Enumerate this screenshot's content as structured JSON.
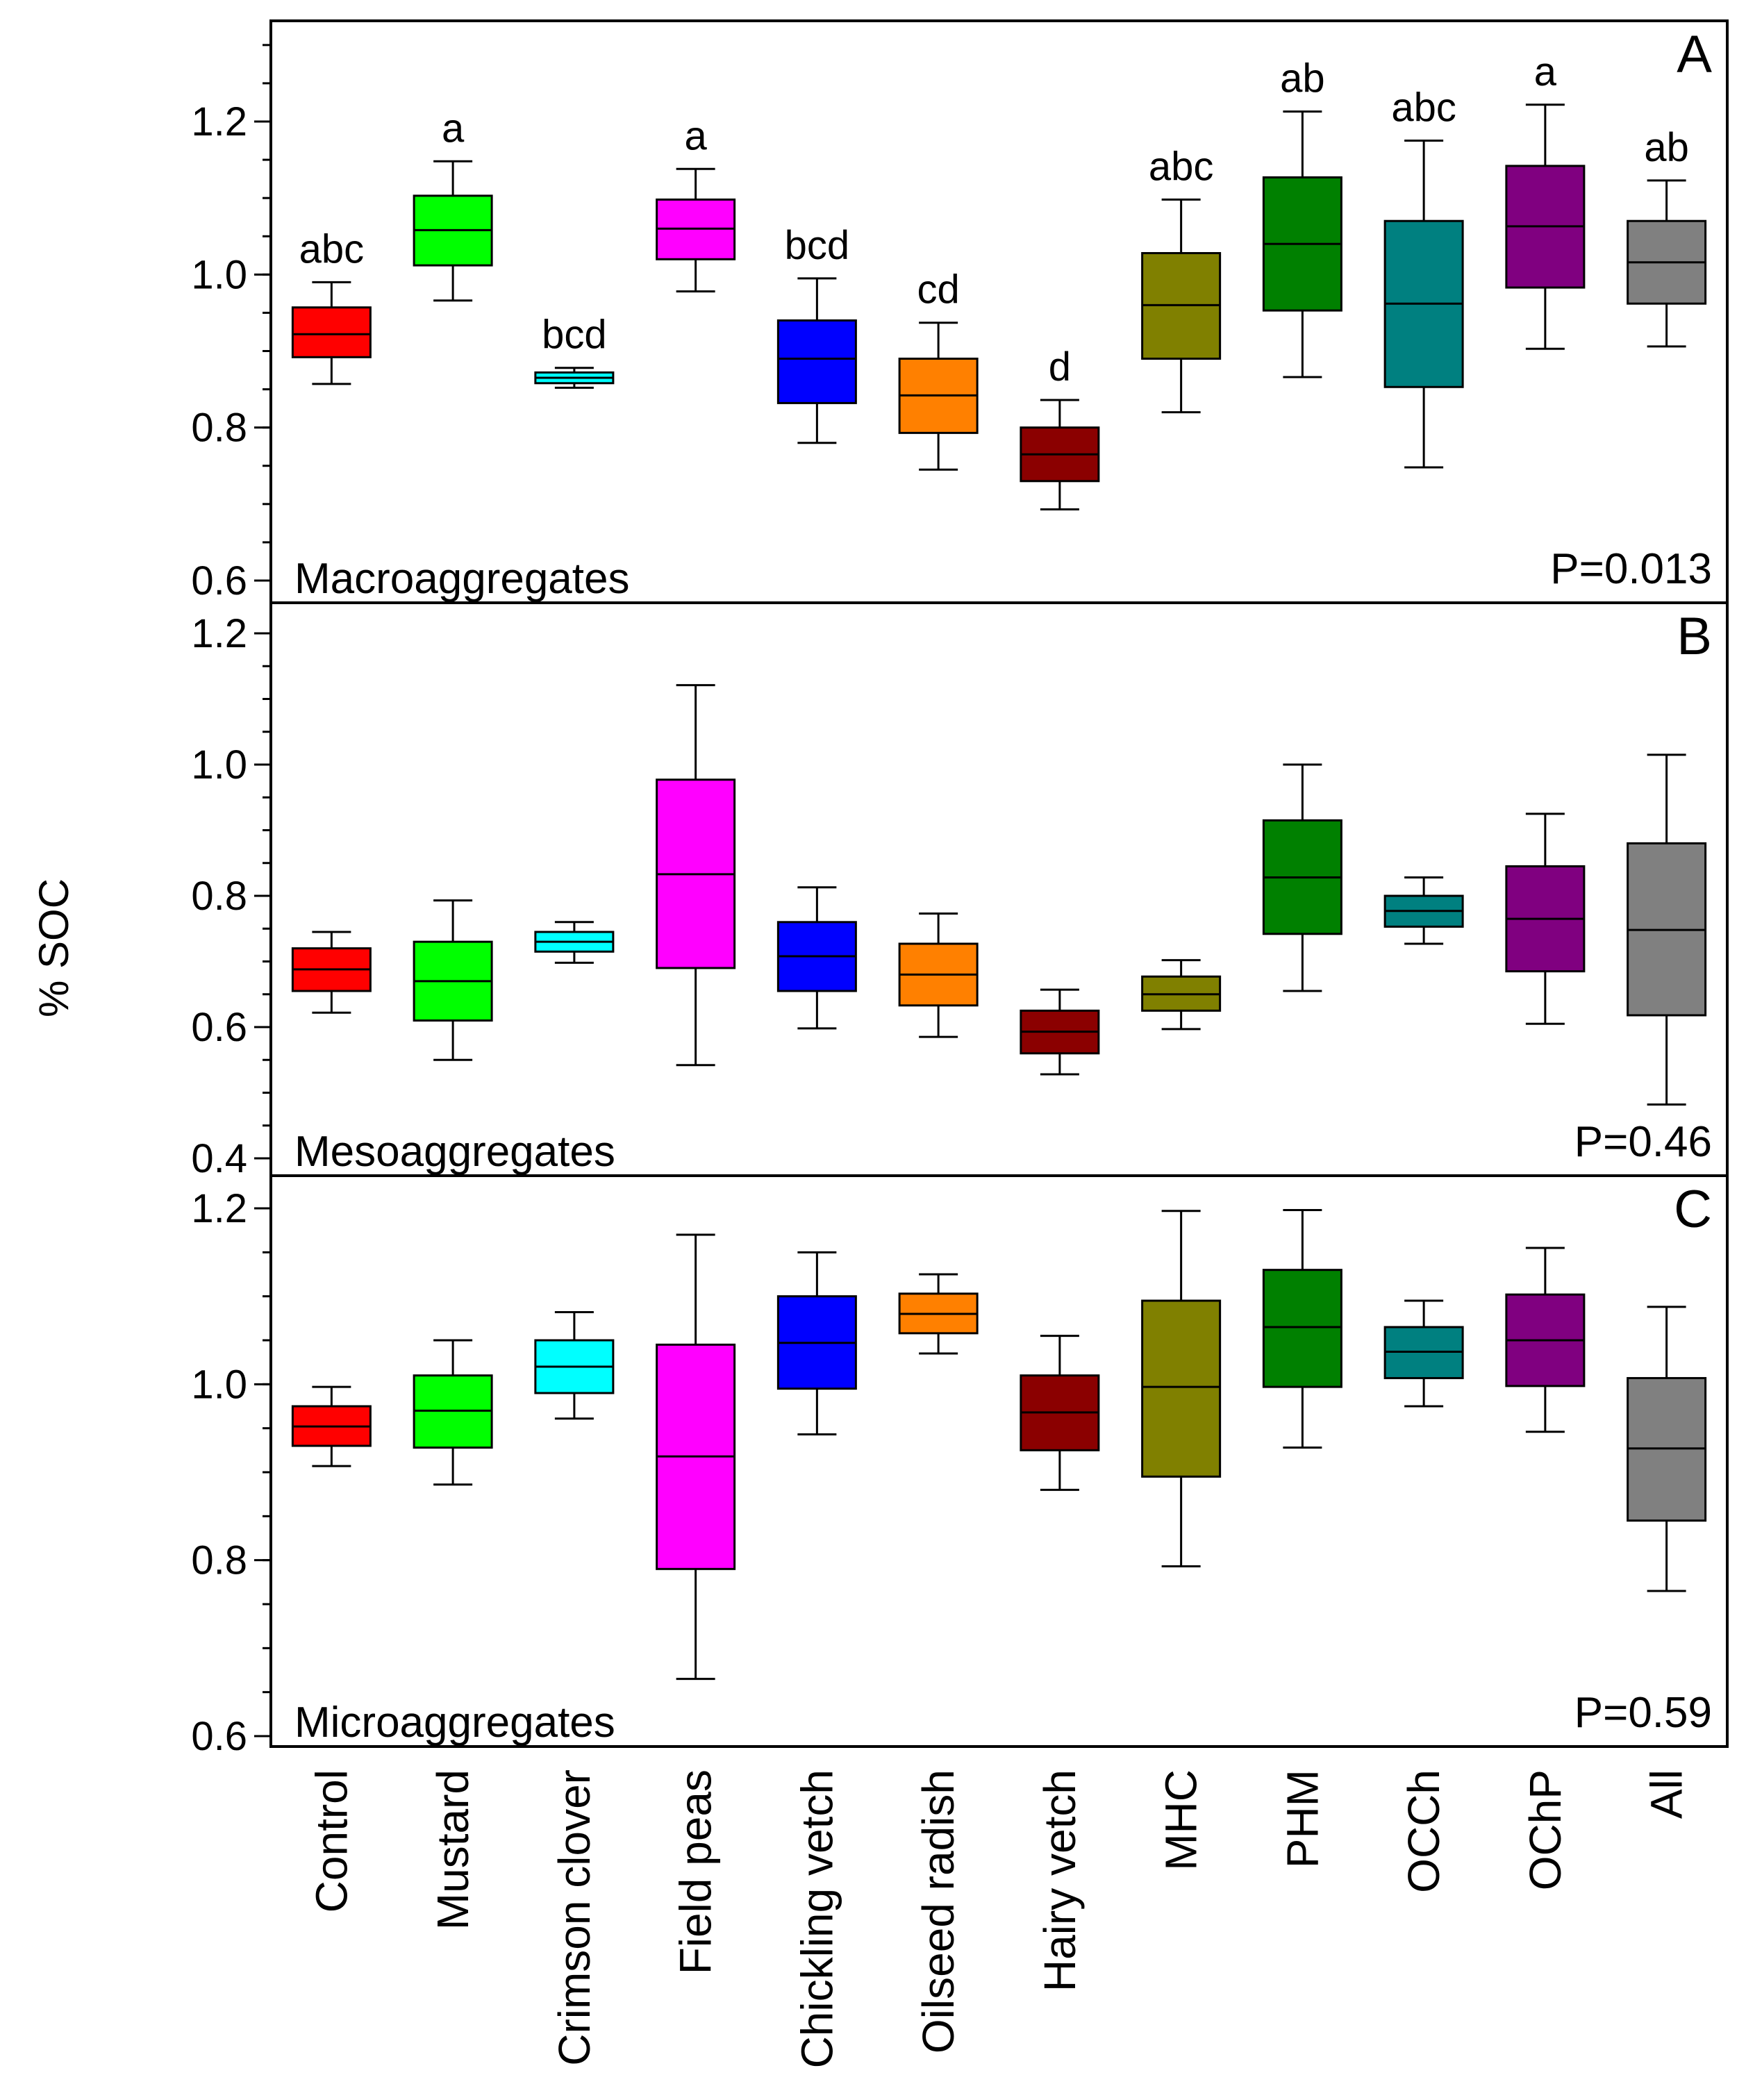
{
  "chart_data": {
    "type": "box",
    "ylabel": "% SOC",
    "categories": [
      "Control",
      "Mustard",
      "Crimson clover",
      "Field peas",
      "Chickling vetch",
      "Oilseed radish",
      "Hairy vetch",
      "MHC",
      "PHM",
      "OCCh",
      "OChP",
      "All"
    ],
    "colors": [
      "#ff0000",
      "#00ff00",
      "#00ffff",
      "#ff00ff",
      "#0000ff",
      "#ff8000",
      "#8b0000",
      "#808000",
      "#008000",
      "#008080",
      "#800080",
      "#808080"
    ],
    "panels": [
      {
        "letter": "A",
        "label": "Macroaggregates",
        "p_value": "P=0.013",
        "ylim": [
          0.6,
          1.33
        ],
        "yticks": [
          0.6,
          0.8,
          1.0,
          1.2
        ],
        "yticklabels": [
          "0.6",
          "0.8",
          "1.0",
          "1.2"
        ],
        "minor_step": 0.05,
        "letters": [
          "abc",
          "a",
          "bcd",
          "a",
          "bcd",
          "cd",
          "d",
          "abc",
          "ab",
          "abc",
          "a",
          "ab"
        ],
        "boxes": [
          {
            "min": 0.857,
            "q1": 0.892,
            "median": 0.922,
            "q3": 0.957,
            "max": 0.99
          },
          {
            "min": 0.966,
            "q1": 1.012,
            "median": 1.058,
            "q3": 1.103,
            "max": 1.148
          },
          {
            "min": 0.852,
            "q1": 0.858,
            "median": 0.865,
            "q3": 0.872,
            "max": 0.878
          },
          {
            "min": 0.978,
            "q1": 1.02,
            "median": 1.06,
            "q3": 1.098,
            "max": 1.138
          },
          {
            "min": 0.78,
            "q1": 0.832,
            "median": 0.89,
            "q3": 0.94,
            "max": 0.995
          },
          {
            "min": 0.745,
            "q1": 0.793,
            "median": 0.842,
            "q3": 0.89,
            "max": 0.937
          },
          {
            "min": 0.693,
            "q1": 0.73,
            "median": 0.765,
            "q3": 0.8,
            "max": 0.836
          },
          {
            "min": 0.82,
            "q1": 0.89,
            "median": 0.96,
            "q3": 1.028,
            "max": 1.098
          },
          {
            "min": 0.866,
            "q1": 0.953,
            "median": 1.04,
            "q3": 1.127,
            "max": 1.213
          },
          {
            "min": 0.748,
            "q1": 0.853,
            "median": 0.962,
            "q3": 1.07,
            "max": 1.175
          },
          {
            "min": 0.903,
            "q1": 0.983,
            "median": 1.063,
            "q3": 1.142,
            "max": 1.222
          },
          {
            "min": 0.906,
            "q1": 0.962,
            "median": 1.016,
            "q3": 1.07,
            "max": 1.123
          }
        ]
      },
      {
        "letter": "B",
        "label": "Mesoaggregates",
        "p_value": "P=0.46",
        "ylim": [
          0.4,
          1.22
        ],
        "yticks": [
          0.4,
          0.6,
          0.8,
          1.0,
          1.2
        ],
        "yticklabels": [
          "0.4",
          "0.6",
          "0.8",
          "1.0",
          "1.2"
        ],
        "minor_step": 0.05,
        "letters": [],
        "boxes": [
          {
            "min": 0.622,
            "q1": 0.655,
            "median": 0.688,
            "q3": 0.72,
            "max": 0.745
          },
          {
            "min": 0.55,
            "q1": 0.61,
            "median": 0.67,
            "q3": 0.73,
            "max": 0.793
          },
          {
            "min": 0.698,
            "q1": 0.715,
            "median": 0.73,
            "q3": 0.745,
            "max": 0.76
          },
          {
            "min": 0.542,
            "q1": 0.69,
            "median": 0.833,
            "q3": 0.977,
            "max": 1.121
          },
          {
            "min": 0.598,
            "q1": 0.655,
            "median": 0.708,
            "q3": 0.76,
            "max": 0.813
          },
          {
            "min": 0.585,
            "q1": 0.633,
            "median": 0.68,
            "q3": 0.727,
            "max": 0.773
          },
          {
            "min": 0.528,
            "q1": 0.56,
            "median": 0.593,
            "q3": 0.625,
            "max": 0.657
          },
          {
            "min": 0.597,
            "q1": 0.625,
            "median": 0.65,
            "q3": 0.677,
            "max": 0.702
          },
          {
            "min": 0.655,
            "q1": 0.742,
            "median": 0.828,
            "q3": 0.915,
            "max": 1.0
          },
          {
            "min": 0.727,
            "q1": 0.753,
            "median": 0.777,
            "q3": 0.8,
            "max": 0.828
          },
          {
            "min": 0.605,
            "q1": 0.685,
            "median": 0.765,
            "q3": 0.845,
            "max": 0.925
          },
          {
            "min": 0.482,
            "q1": 0.618,
            "median": 0.748,
            "q3": 0.88,
            "max": 1.015
          }
        ]
      },
      {
        "letter": "C",
        "label": "Microaggregates",
        "p_value": "P=0.59",
        "ylim": [
          0.6,
          1.24
        ],
        "yticks": [
          0.6,
          0.8,
          1.0,
          1.2
        ],
        "yticklabels": [
          "0.6",
          "0.8",
          "1.0",
          "1.2"
        ],
        "minor_step": 0.05,
        "letters": [],
        "boxes": [
          {
            "min": 0.907,
            "q1": 0.93,
            "median": 0.952,
            "q3": 0.975,
            "max": 0.997
          },
          {
            "min": 0.886,
            "q1": 0.928,
            "median": 0.97,
            "q3": 1.01,
            "max": 1.05
          },
          {
            "min": 0.961,
            "q1": 0.99,
            "median": 1.02,
            "q3": 1.05,
            "max": 1.082
          },
          {
            "min": 0.665,
            "q1": 0.79,
            "median": 0.918,
            "q3": 1.045,
            "max": 1.17
          },
          {
            "min": 0.943,
            "q1": 0.995,
            "median": 1.047,
            "q3": 1.1,
            "max": 1.15
          },
          {
            "min": 1.035,
            "q1": 1.058,
            "median": 1.08,
            "q3": 1.103,
            "max": 1.125
          },
          {
            "min": 0.88,
            "q1": 0.925,
            "median": 0.968,
            "q3": 1.01,
            "max": 1.055
          },
          {
            "min": 0.793,
            "q1": 0.895,
            "median": 0.997,
            "q3": 1.095,
            "max": 1.197
          },
          {
            "min": 0.928,
            "q1": 0.997,
            "median": 1.065,
            "q3": 1.13,
            "max": 1.198
          },
          {
            "min": 0.975,
            "q1": 1.007,
            "median": 1.037,
            "q3": 1.065,
            "max": 1.095
          },
          {
            "min": 0.946,
            "q1": 0.998,
            "median": 1.05,
            "q3": 1.102,
            "max": 1.155
          },
          {
            "min": 0.765,
            "q1": 0.845,
            "median": 0.927,
            "q3": 1.007,
            "max": 1.088
          }
        ]
      }
    ]
  }
}
